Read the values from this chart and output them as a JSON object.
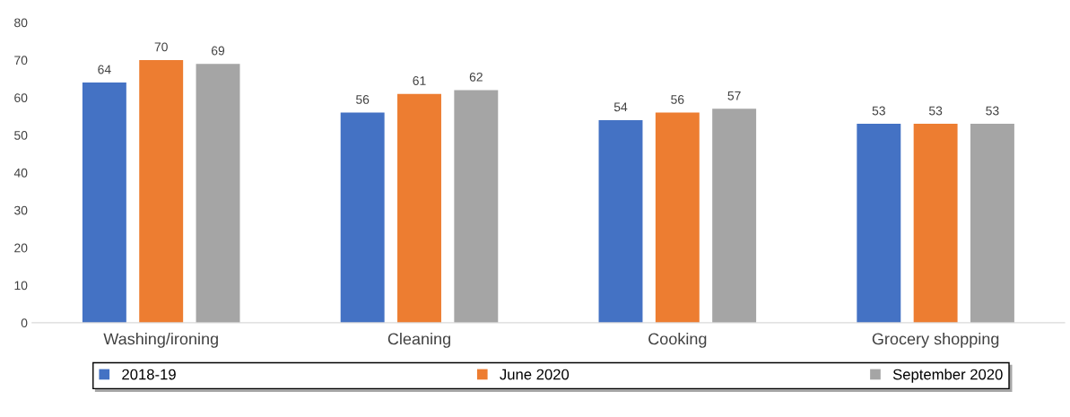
{
  "chart_data": {
    "type": "bar",
    "categories": [
      "Washing/ironing",
      "Cleaning",
      "Cooking",
      "Grocery shopping"
    ],
    "series": [
      {
        "name": "2018-19",
        "color": "#4472c4",
        "values": [
          64,
          56,
          54,
          53
        ]
      },
      {
        "name": "June 2020",
        "color": "#ed7d31",
        "values": [
          70,
          61,
          56,
          53
        ]
      },
      {
        "name": "September 2020",
        "color": "#a5a5a5",
        "values": [
          69,
          62,
          57,
          53
        ]
      }
    ],
    "ylim": [
      0,
      80
    ],
    "yticks": [
      0,
      10,
      20,
      30,
      40,
      50,
      60,
      70,
      80
    ],
    "grid": false,
    "legend": "bottom",
    "data_labels": true
  }
}
